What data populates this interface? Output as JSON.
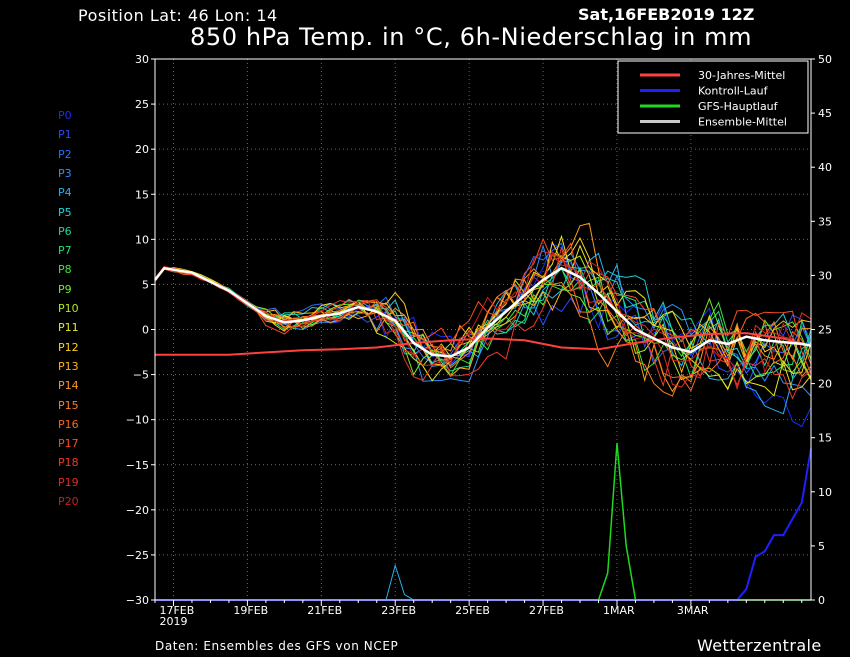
{
  "header": {
    "position": "Position   Lat: 46 Lon: 14",
    "datetime": "Sat,16FEB2019 12Z",
    "title": "850 hPa Temp. in °C, 6h-Niederschlag in mm"
  },
  "footer": {
    "source": "Daten: Ensembles des GFS von NCEP",
    "brand": "Wetterzentrale"
  },
  "members": [
    {
      "label": "P0",
      "color": "#1a2bff"
    },
    {
      "label": "P1",
      "color": "#2a4cff"
    },
    {
      "label": "P2",
      "color": "#2f6cff"
    },
    {
      "label": "P3",
      "color": "#2f90ff"
    },
    {
      "label": "P4",
      "color": "#27b3f0"
    },
    {
      "label": "P5",
      "color": "#22cfd6"
    },
    {
      "label": "P6",
      "color": "#1fd89a"
    },
    {
      "label": "P7",
      "color": "#22e070"
    },
    {
      "label": "P8",
      "color": "#3ae83a"
    },
    {
      "label": "P9",
      "color": "#7ae820"
    },
    {
      "label": "P10",
      "color": "#b6e81c"
    },
    {
      "label": "P11",
      "color": "#e8e81c"
    },
    {
      "label": "P12",
      "color": "#ffd21c"
    },
    {
      "label": "P13",
      "color": "#ffb41c"
    },
    {
      "label": "P14",
      "color": "#ff9a1c"
    },
    {
      "label": "P15",
      "color": "#ff7e20"
    },
    {
      "label": "P16",
      "color": "#ff6424"
    },
    {
      "label": "P17",
      "color": "#f84c26"
    },
    {
      "label": "P18",
      "color": "#ee3a28"
    },
    {
      "label": "P19",
      "color": "#e02a26"
    },
    {
      "label": "P20",
      "color": "#cc1f1f"
    }
  ],
  "chart_data": {
    "type": "line",
    "x_unit": "days from 16FEB2019 12Z",
    "xlim": [
      0,
      17.75
    ],
    "ylim": [
      -30,
      30
    ],
    "y2lim": [
      0,
      50
    ],
    "y_ticks": [
      30,
      25,
      20,
      15,
      10,
      5,
      0,
      -5,
      -10,
      -15,
      -20,
      -25,
      -30
    ],
    "y2_ticks": [
      50,
      45,
      40,
      35,
      30,
      25,
      20,
      15,
      10,
      5,
      0
    ],
    "x_ticks": [
      {
        "x": 0.5,
        "label": "17FEB",
        "sub": "2019"
      },
      {
        "x": 2.5,
        "label": "19FEB",
        "sub": ""
      },
      {
        "x": 4.5,
        "label": "21FEB",
        "sub": ""
      },
      {
        "x": 6.5,
        "label": "23FEB",
        "sub": ""
      },
      {
        "x": 8.5,
        "label": "25FEB",
        "sub": ""
      },
      {
        "x": 10.5,
        "label": "27FEB",
        "sub": ""
      },
      {
        "x": 12.5,
        "label": "1MAR",
        "sub": ""
      },
      {
        "x": 14.5,
        "label": "3MAR",
        "sub": ""
      }
    ],
    "grid": true,
    "legend_position": "top-right",
    "legend": [
      {
        "name": "30-Jahres-Mittel",
        "color": "#ff4040"
      },
      {
        "name": "Kontroll-Lauf",
        "color": "#1f1fff"
      },
      {
        "name": "GFS-Hauptlauf",
        "color": "#1fd81f"
      },
      {
        "name": "Ensemble-Mittel",
        "color": "#c8c8c8"
      }
    ],
    "mean_30y": {
      "x": [
        0,
        2,
        4,
        5,
        6,
        7,
        8,
        9,
        10,
        11,
        12,
        13,
        14,
        15,
        16,
        17,
        17.75
      ],
      "y": [
        -2.8,
        -2.8,
        -2.3,
        -2.2,
        -2.0,
        -1.5,
        -1.2,
        -1.0,
        -1.2,
        -2.0,
        -2.2,
        -1.5,
        -0.9,
        -0.5,
        -0.4,
        -1.0,
        -1.8
      ]
    },
    "ensemble_mean": {
      "x": [
        0,
        0.25,
        1,
        2,
        3,
        3.5,
        4,
        4.5,
        5,
        5.5,
        6,
        6.5,
        7,
        7.5,
        8,
        8.5,
        9,
        9.5,
        10,
        10.5,
        11,
        11.5,
        12,
        12.5,
        13,
        13.5,
        14,
        14.5,
        15,
        15.5,
        16,
        16.5,
        17,
        17.5,
        17.75
      ],
      "y": [
        5.5,
        6.8,
        6.3,
        4.3,
        1.5,
        0.8,
        1.0,
        1.5,
        1.8,
        2.5,
        2.0,
        1.0,
        -1.5,
        -2.8,
        -3.0,
        -2.0,
        0.2,
        2.0,
        3.8,
        5.5,
        6.8,
        5.8,
        4.0,
        2.0,
        0.0,
        -1.0,
        -2.0,
        -2.5,
        -1.2,
        -1.6,
        -0.8,
        -1.2,
        -1.4,
        -1.6,
        -1.8
      ]
    },
    "precip_gfs": {
      "x": [
        0,
        12.0,
        12.25,
        12.5,
        12.75,
        13.0,
        17.75
      ],
      "y": [
        0,
        0,
        2.5,
        14.5,
        5.0,
        0,
        0
      ]
    },
    "precip_control": {
      "x": [
        0,
        15.75,
        16.0,
        16.25,
        16.5,
        16.75,
        17.0,
        17.25,
        17.5,
        17.75
      ],
      "y": [
        0,
        0,
        1.0,
        4.0,
        4.5,
        6.0,
        6.0,
        7.5,
        9.0,
        14.0
      ]
    },
    "precip_member_peak": {
      "x": [
        0,
        6.25,
        6.5,
        6.75,
        7.0,
        17.75
      ],
      "y": [
        0,
        0,
        3.2,
        0.5,
        0,
        0
      ]
    }
  }
}
